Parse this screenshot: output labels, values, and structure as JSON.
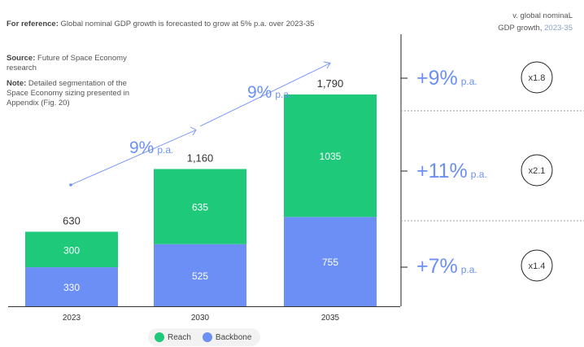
{
  "header": {
    "reference_label": "For reference:",
    "reference_text": "Global nominal GDP growth is forecasted to grow at 5% p.a. over 2023-35",
    "comparison_line1": "v. global nominaL",
    "comparison_line2": "GDP growth,",
    "comparison_period": "2023-35"
  },
  "notes": {
    "source_label": "Source:",
    "source_text": "Future of Space Economy research",
    "note_label": "Note:",
    "note_text": "Detailed segmentation of the Space Economy sizing presented in Appendix (Fig. 20)"
  },
  "colors": {
    "reach": "#1ec97a",
    "backbone": "#6b8ff5",
    "accent": "#6b8ff5",
    "axis": "#333333"
  },
  "chart_data": {
    "type": "bar",
    "stacked": true,
    "categories": [
      "2023",
      "2030",
      "2035"
    ],
    "series": [
      {
        "name": "Backbone",
        "values": [
          330,
          525,
          755
        ]
      },
      {
        "name": "Reach",
        "values": [
          300,
          635,
          1035
        ]
      }
    ],
    "totals": [
      "630",
      "1,160",
      "1,790"
    ],
    "growth_labels": [
      {
        "value": "9%",
        "unit": "p.a."
      },
      {
        "value": "9%",
        "unit": "p.a."
      }
    ],
    "ylim": [
      0,
      1900
    ],
    "legend_position": "bottom",
    "segment_growth": [
      {
        "rate": "+9%",
        "unit": "p.a.",
        "multiple": "x1.8"
      },
      {
        "rate": "+11%",
        "unit": "p.a.",
        "multiple": "x2.1"
      },
      {
        "rate": "+7%",
        "unit": "p.a.",
        "multiple": "x1.4"
      }
    ]
  }
}
